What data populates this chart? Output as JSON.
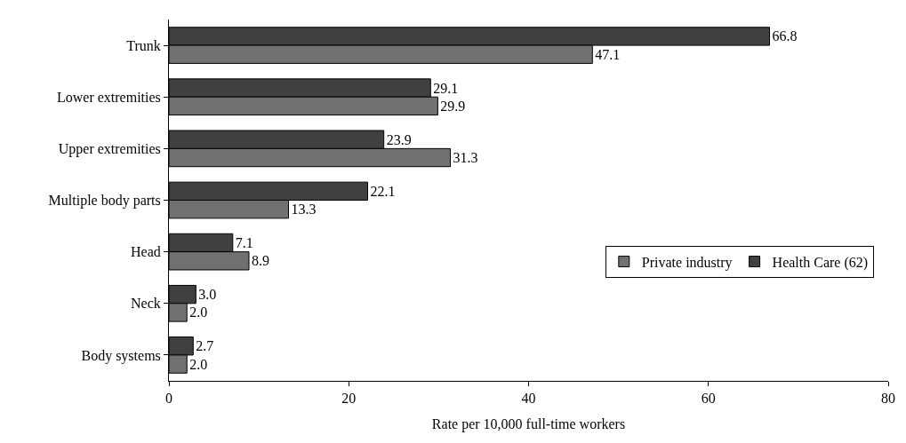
{
  "chart_data": {
    "type": "bar",
    "orientation": "horizontal",
    "xlabel": "Rate per 10,000 full-time workers",
    "categories": [
      "Trunk",
      "Lower extremities",
      "Upper extremities",
      "Multiple body parts",
      "Head",
      "Neck",
      "Body systems"
    ],
    "series": [
      {
        "name": "Private industry",
        "color": "#717171",
        "values": [
          47.1,
          29.9,
          31.3,
          13.3,
          8.9,
          2.0,
          2.0
        ],
        "value_labels": [
          "47.1",
          "29.9",
          "31.3",
          "13.3",
          "8.9",
          "2.0",
          "2.0"
        ]
      },
      {
        "name": "Health Care (62)",
        "color": "#404040",
        "values": [
          66.8,
          29.1,
          23.9,
          22.1,
          7.1,
          3.0,
          2.7
        ],
        "value_labels": [
          "66.8",
          "29.1",
          "23.9",
          "22.1",
          "7.1",
          "3.0",
          "2.7"
        ]
      }
    ],
    "xlim": [
      0,
      80
    ],
    "xticks": [
      0,
      20,
      40,
      60,
      80
    ],
    "legend": "right"
  }
}
